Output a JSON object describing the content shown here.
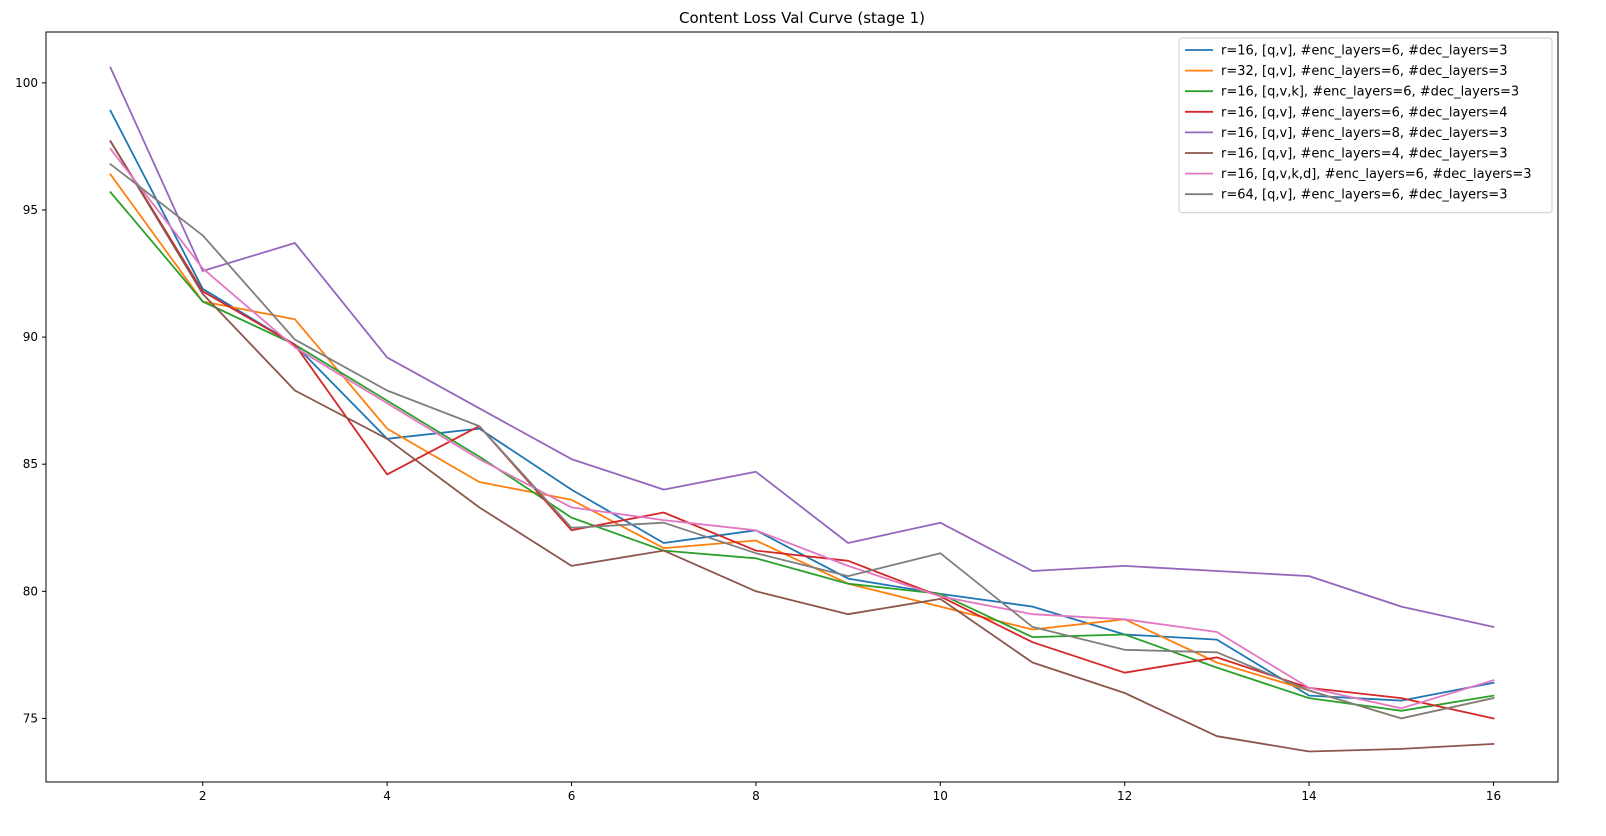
{
  "chart_data": {
    "type": "line",
    "title": "Content Loss Val Curve (stage 1)",
    "xlabel": "",
    "ylabel": "",
    "xlim": [
      0.3,
      16.7
    ],
    "ylim": [
      72.5,
      102.0
    ],
    "x": [
      1,
      2,
      3,
      4,
      5,
      6,
      7,
      8,
      9,
      10,
      11,
      12,
      13,
      14,
      15,
      16
    ],
    "xticks": [
      2,
      4,
      6,
      8,
      10,
      12,
      14,
      16
    ],
    "yticks": [
      75,
      80,
      85,
      90,
      95,
      100
    ],
    "grid": false,
    "legend_position": "top-right",
    "series": [
      {
        "name": "r=16, [q,v], #enc_layers=6, #dec_layers=3",
        "color": "#1f77b4",
        "values": [
          98.9,
          91.9,
          89.7,
          86.0,
          86.4,
          84.0,
          81.9,
          82.4,
          80.5,
          79.9,
          79.4,
          78.3,
          78.1,
          75.9,
          75.7,
          76.4
        ]
      },
      {
        "name": "r=32, [q,v], #enc_layers=6, #dec_layers=3",
        "color": "#ff7f0e",
        "values": [
          96.4,
          91.4,
          90.7,
          86.4,
          84.3,
          83.6,
          81.7,
          82.0,
          80.3,
          79.4,
          78.5,
          78.9,
          77.2,
          76.1,
          75.0,
          75.8
        ]
      },
      {
        "name": "r=16, [q,v,k], #enc_layers=6, #dec_layers=3",
        "color": "#2ca02c",
        "values": [
          95.7,
          91.4,
          89.7,
          87.5,
          85.3,
          82.9,
          81.6,
          81.3,
          80.3,
          79.9,
          78.2,
          78.3,
          77.0,
          75.8,
          75.3,
          75.9
        ]
      },
      {
        "name": "r=16, [q,v], #enc_layers=6, #dec_layers=4",
        "color": "#d62728",
        "values": [
          97.7,
          91.8,
          89.7,
          84.6,
          86.5,
          82.4,
          83.1,
          81.6,
          81.2,
          79.8,
          78.0,
          76.8,
          77.4,
          76.2,
          75.8,
          75.0
        ]
      },
      {
        "name": "r=16, [q,v], #enc_layers=8, #dec_layers=3",
        "color": "#9467bd",
        "values": [
          100.6,
          92.6,
          93.7,
          89.2,
          87.2,
          85.2,
          84.0,
          84.7,
          81.9,
          82.7,
          80.8,
          81.0,
          80.8,
          80.6,
          79.4,
          78.6
        ]
      },
      {
        "name": "r=16, [q,v], #enc_layers=4, #dec_layers=3",
        "color": "#8c564b",
        "values": [
          97.7,
          91.7,
          87.9,
          86.0,
          83.3,
          81.0,
          81.6,
          80.0,
          79.1,
          79.7,
          77.2,
          76.0,
          74.3,
          73.7,
          73.8,
          74.0
        ]
      },
      {
        "name": "r=16, [q,v,k,d], #enc_layers=6, #dec_layers=3",
        "color": "#e377c2",
        "values": [
          97.4,
          92.7,
          89.6,
          87.4,
          85.2,
          83.3,
          82.8,
          82.4,
          81.0,
          79.8,
          79.1,
          78.9,
          78.4,
          76.2,
          75.4,
          76.5
        ]
      },
      {
        "name": "r=64, [q,v], #enc_layers=6, #dec_layers=3",
        "color": "#7f7f7f",
        "values": [
          96.8,
          94.0,
          89.9,
          87.9,
          86.5,
          82.5,
          82.7,
          81.5,
          80.6,
          81.5,
          78.6,
          77.7,
          77.6,
          76.1,
          75.0,
          75.8
        ]
      }
    ]
  }
}
